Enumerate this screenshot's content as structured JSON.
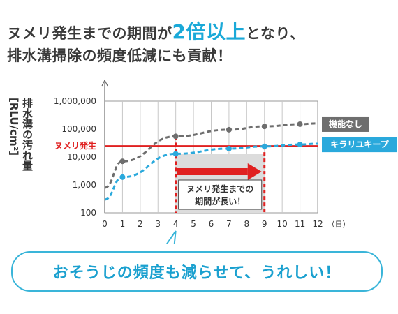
{
  "headline": {
    "line1_pre": "ヌメリ発生までの期間が",
    "line1_em": "2倍以上",
    "line1_post": "となり、",
    "line2": "排水溝掃除の頻度低減にも貢献！"
  },
  "bubble_text": "おそうじの頻度も減らせて、うれしい！",
  "chart_data": {
    "type": "line",
    "ylabel": [
      "排水溝の汚れ量",
      "[RLU/cm²]"
    ],
    "yscale": "log",
    "ylim": [
      100,
      1000000
    ],
    "y_ticks": [
      "1,000,000",
      "100,000",
      "10,000",
      "1,000",
      "100"
    ],
    "xlim": [
      0,
      12
    ],
    "x_ticks": [
      "0",
      "1",
      "2",
      "3",
      "4",
      "5",
      "6",
      "7",
      "8",
      "9",
      "10",
      "11",
      "12"
    ],
    "x_unit": "（日）",
    "threshold": {
      "label": "ヌメリ発生",
      "value": 25000
    },
    "series": [
      {
        "name": "機能なし",
        "color": "#6e6e6e",
        "x": [
          1,
          4,
          7,
          9,
          11
        ],
        "y": [
          7000,
          55000,
          95000,
          125000,
          150000
        ]
      },
      {
        "name": "キラリユキープ",
        "color": "#2aa9dc",
        "x": [
          1,
          4,
          7,
          9,
          11
        ],
        "y": [
          1900,
          13000,
          20000,
          24000,
          28000
        ]
      }
    ],
    "annotation": {
      "text": [
        "ヌメリ発生までの",
        "期間が長い！"
      ],
      "x_start": 4,
      "x_end": 9
    }
  }
}
